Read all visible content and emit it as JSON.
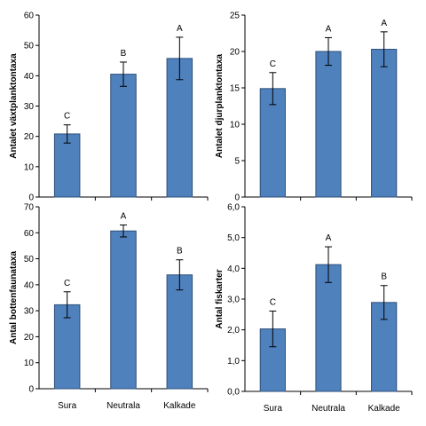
{
  "chart_data": [
    {
      "type": "bar",
      "categories": [
        "Sura",
        "Neutrala",
        "Kalkade"
      ],
      "values": [
        20.8,
        40.5,
        45.7
      ],
      "errors": [
        3.0,
        4.0,
        7.0
      ],
      "significance": [
        "C",
        "B",
        "A"
      ],
      "ylabel": "Antalet växtplanktontaxa",
      "xlabel": "",
      "ylim": [
        0,
        60
      ],
      "yticks": [
        "0",
        "10",
        "20",
        "30",
        "40",
        "50",
        "60"
      ],
      "show_categories": false,
      "bar_color": "#4F81BD",
      "bar_edge_color": "#2E4F7A"
    },
    {
      "type": "bar",
      "categories": [
        "Sura",
        "Neutrala",
        "Kalkade"
      ],
      "values": [
        14.9,
        20.0,
        20.3
      ],
      "errors": [
        2.2,
        1.9,
        2.4
      ],
      "significance": [
        "C",
        "A",
        "A"
      ],
      "ylabel": "Antalet djurplanktontaxa",
      "xlabel": "",
      "ylim": [
        0,
        25
      ],
      "yticks": [
        "0",
        "5",
        "10",
        "15",
        "20",
        "25"
      ],
      "show_categories": false,
      "bar_color": "#4F81BD",
      "bar_edge_color": "#2E4F7A"
    },
    {
      "type": "bar",
      "categories": [
        "Sura",
        "Neutrala",
        "Kalkade"
      ],
      "values": [
        32.3,
        60.7,
        43.8
      ],
      "errors": [
        5.0,
        2.3,
        5.8
      ],
      "significance": [
        "C",
        "A",
        "B"
      ],
      "ylabel": "Antal bottenfaunataxa",
      "xlabel": "",
      "ylim": [
        0,
        70
      ],
      "yticks": [
        "0",
        "10",
        "20",
        "30",
        "40",
        "50",
        "60",
        "70"
      ],
      "show_categories": true,
      "bar_color": "#4F81BD",
      "bar_edge_color": "#2E4F7A"
    },
    {
      "type": "bar",
      "categories": [
        "Sura",
        "Neutrala",
        "Kalkade"
      ],
      "values": [
        2.03,
        4.12,
        2.89
      ],
      "errors": [
        0.58,
        0.58,
        0.55
      ],
      "significance": [
        "C",
        "A",
        "B"
      ],
      "ylabel": "Antal fiskarter",
      "xlabel": "",
      "ylim": [
        0,
        6
      ],
      "yticks": [
        "0,0",
        "1,0",
        "2,0",
        "3,0",
        "4,0",
        "5,0",
        "6,0"
      ],
      "show_categories": true,
      "bar_color": "#4F81BD",
      "bar_edge_color": "#2E4F7A"
    }
  ]
}
